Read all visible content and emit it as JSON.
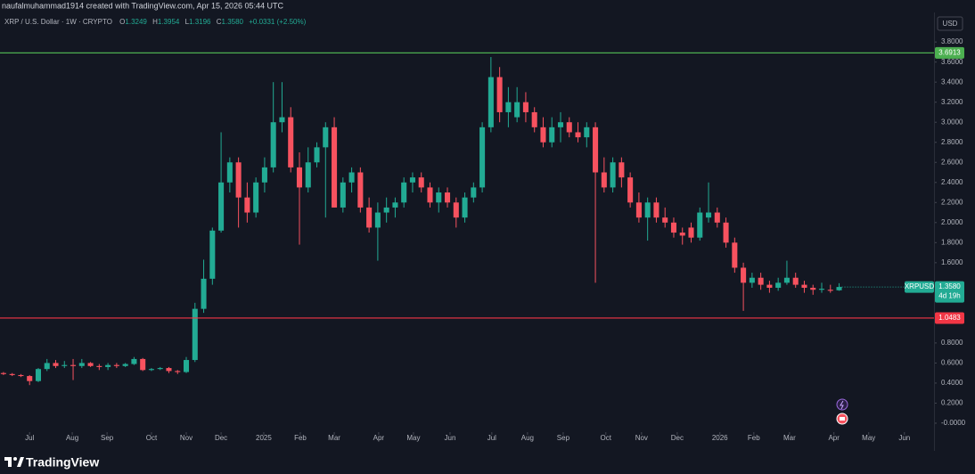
{
  "header": {
    "credit": "naufalmuhammad1914 created with TradingView.com, Apr 15, 2026 05:44 UTC"
  },
  "footer": {
    "brand": "TradingView"
  },
  "chart_data": {
    "type": "candlestick",
    "symbol_title": "XRP / U.S. Dollar · 1W · CRYPTO",
    "ohlc_legend": [
      {
        "key": "O",
        "value": "1.3249"
      },
      {
        "key": "H",
        "value": "1.3954"
      },
      {
        "key": "L",
        "value": "1.3196"
      },
      {
        "key": "C",
        "value": "1.3580"
      }
    ],
    "change": "+0.0331 (+2.50%)",
    "currency": "USD",
    "open": [
      0.5,
      0.49,
      0.48,
      0.47,
      0.42,
      0.54,
      0.6,
      0.57,
      0.58,
      0.57,
      0.6,
      0.57,
      0.56,
      0.58,
      0.57,
      0.59,
      0.64,
      0.53,
      0.54,
      0.55,
      0.52,
      0.51,
      0.63,
      1.14,
      1.44,
      1.92,
      2.4,
      2.6,
      2.25,
      2.1,
      2.4,
      2.55,
      3.0,
      3.05,
      2.55,
      2.35,
      2.6,
      2.75,
      2.95,
      2.15,
      2.4,
      2.5,
      2.15,
      1.95,
      2.1,
      2.15,
      2.2,
      2.4,
      2.45,
      2.35,
      2.2,
      2.3,
      2.2,
      2.05,
      2.25,
      2.35,
      2.95,
      3.45,
      3.1,
      3.05,
      3.2,
      3.1,
      2.95,
      2.8,
      2.95,
      3.0,
      2.9,
      2.85,
      2.95,
      2.5,
      2.35,
      2.6,
      2.45,
      2.2,
      2.05,
      2.2,
      2.05,
      2.0,
      1.9,
      1.95,
      1.85,
      2.05,
      2.1,
      2.0,
      1.8,
      1.55,
      1.4,
      1.45,
      1.38,
      1.35,
      1.4,
      1.45,
      1.38,
      1.35,
      1.33,
      1.33,
      1.3249
    ],
    "high": [
      0.51,
      0.5,
      0.49,
      0.48,
      0.55,
      0.64,
      0.63,
      0.62,
      0.64,
      0.64,
      0.61,
      0.59,
      0.6,
      0.6,
      0.6,
      0.66,
      0.65,
      0.55,
      0.56,
      0.56,
      0.53,
      0.66,
      1.2,
      1.63,
      1.95,
      2.9,
      2.65,
      2.65,
      2.4,
      2.45,
      2.65,
      3.4,
      3.4,
      3.15,
      2.7,
      2.75,
      2.8,
      3.0,
      3.05,
      2.45,
      2.55,
      2.55,
      2.25,
      2.2,
      2.25,
      2.25,
      2.45,
      2.5,
      2.5,
      2.4,
      2.35,
      2.35,
      2.25,
      2.3,
      2.4,
      3.0,
      3.65,
      3.55,
      3.35,
      3.35,
      3.3,
      3.15,
      3.05,
      3.05,
      3.1,
      3.05,
      3.0,
      3.0,
      3.0,
      2.65,
      2.65,
      2.65,
      2.5,
      2.3,
      2.25,
      2.25,
      2.15,
      2.05,
      1.95,
      2.0,
      2.15,
      2.4,
      2.15,
      2.05,
      1.85,
      1.6,
      1.5,
      1.5,
      1.42,
      1.45,
      1.62,
      1.5,
      1.42,
      1.38,
      1.4,
      1.38,
      1.3954
    ],
    "low": [
      0.48,
      0.47,
      0.46,
      0.38,
      0.41,
      0.52,
      0.55,
      0.55,
      0.43,
      0.55,
      0.56,
      0.53,
      0.53,
      0.55,
      0.56,
      0.58,
      0.52,
      0.52,
      0.53,
      0.5,
      0.49,
      0.5,
      0.61,
      1.1,
      1.38,
      1.9,
      2.3,
      1.95,
      2.0,
      2.05,
      2.3,
      2.5,
      2.9,
      2.5,
      1.78,
      2.3,
      2.55,
      2.05,
      2.15,
      2.1,
      2.3,
      2.1,
      1.9,
      1.62,
      2.0,
      2.05,
      2.15,
      2.3,
      2.3,
      2.15,
      2.1,
      2.15,
      1.95,
      2.0,
      2.2,
      2.3,
      2.9,
      3.0,
      2.95,
      3.0,
      3.0,
      2.9,
      2.75,
      2.75,
      2.8,
      2.85,
      2.8,
      2.75,
      1.4,
      2.3,
      2.3,
      2.35,
      2.15,
      2.0,
      1.82,
      2.0,
      1.95,
      1.85,
      1.78,
      1.8,
      1.82,
      2.0,
      1.95,
      1.75,
      1.5,
      1.12,
      1.35,
      1.33,
      1.3,
      1.32,
      1.38,
      1.35,
      1.3,
      1.28,
      1.3,
      1.3,
      1.3196
    ],
    "close": [
      0.49,
      0.48,
      0.47,
      0.42,
      0.54,
      0.6,
      0.57,
      0.58,
      0.57,
      0.6,
      0.57,
      0.56,
      0.58,
      0.57,
      0.59,
      0.64,
      0.53,
      0.54,
      0.55,
      0.52,
      0.51,
      0.63,
      1.14,
      1.44,
      1.92,
      2.4,
      2.6,
      2.25,
      2.1,
      2.4,
      2.55,
      3.0,
      3.05,
      2.55,
      2.35,
      2.6,
      2.75,
      2.95,
      2.15,
      2.4,
      2.5,
      2.15,
      1.95,
      2.1,
      2.15,
      2.2,
      2.4,
      2.45,
      2.35,
      2.2,
      2.3,
      2.2,
      2.05,
      2.25,
      2.35,
      2.95,
      3.45,
      3.1,
      3.2,
      3.2,
      3.1,
      2.95,
      2.8,
      2.95,
      3.0,
      2.9,
      2.85,
      2.95,
      2.5,
      2.35,
      2.6,
      2.45,
      2.2,
      2.05,
      2.2,
      2.05,
      2.0,
      1.9,
      1.87,
      1.85,
      2.1,
      2.1,
      2.0,
      1.8,
      1.55,
      1.4,
      1.45,
      1.38,
      1.35,
      1.4,
      1.45,
      1.38,
      1.35,
      1.33,
      1.34,
      1.32,
      1.358
    ],
    "up_color": "#22ab94",
    "down_color": "#f7525f",
    "xlim": [
      -0.4,
      106.9
    ],
    "xticks": [
      {
        "value": 3,
        "label": "Jul"
      },
      {
        "value": 7.9,
        "label": "Aug"
      },
      {
        "value": 11.9,
        "label": "Sep"
      },
      {
        "value": 17.0,
        "label": "Oct"
      },
      {
        "value": 21.0,
        "label": "Nov"
      },
      {
        "value": 25.0,
        "label": "Dec"
      },
      {
        "value": 29.9,
        "label": "2025"
      },
      {
        "value": 34.1,
        "label": "Feb"
      },
      {
        "value": 38.0,
        "label": "Mar"
      },
      {
        "value": 43.1,
        "label": "Apr"
      },
      {
        "value": 47.1,
        "label": "May"
      },
      {
        "value": 51.3,
        "label": "Jun"
      },
      {
        "value": 56.1,
        "label": "Jul"
      },
      {
        "value": 60.2,
        "label": "Aug"
      },
      {
        "value": 64.3,
        "label": "Sep"
      },
      {
        "value": 69.2,
        "label": "Oct"
      },
      {
        "value": 73.3,
        "label": "Nov"
      },
      {
        "value": 77.4,
        "label": "Dec"
      },
      {
        "value": 82.3,
        "label": "2026"
      },
      {
        "value": 86.2,
        "label": "Feb"
      },
      {
        "value": 90.3,
        "label": "Mar"
      },
      {
        "value": 95.4,
        "label": "Apr"
      },
      {
        "value": 99.4,
        "label": "May"
      },
      {
        "value": 103.5,
        "label": "Jun"
      }
    ],
    "ylim": [
      -0.089,
      3.89
    ],
    "yticks": [
      {
        "value": 3.8,
        "label": "3.8000"
      },
      {
        "value": 3.6,
        "label": "3.6000"
      },
      {
        "value": 3.4,
        "label": "3.4000"
      },
      {
        "value": 3.2,
        "label": "3.2000"
      },
      {
        "value": 3.0,
        "label": "3.0000"
      },
      {
        "value": 2.8,
        "label": "2.8000"
      },
      {
        "value": 2.6,
        "label": "2.6000"
      },
      {
        "value": 2.4,
        "label": "2.4000"
      },
      {
        "value": 2.2,
        "label": "2.2000"
      },
      {
        "value": 2.0,
        "label": "2.0000"
      },
      {
        "value": 1.8,
        "label": "1.8000"
      },
      {
        "value": 1.6,
        "label": "1.6000"
      },
      {
        "value": 0.8,
        "label": "0.8000"
      },
      {
        "value": 0.6,
        "label": "0.6000"
      },
      {
        "value": 0.4,
        "label": "0.4000"
      },
      {
        "value": 0.2,
        "label": "0.2000"
      },
      {
        "value": 0,
        "label": "-0.0000"
      }
    ],
    "hlines": [
      {
        "value": 3.6913,
        "color": "#4caf50"
      },
      {
        "value": 1.0483,
        "color": "#f23645"
      }
    ],
    "last_price": {
      "symbol": "XRPUSD",
      "value": 1.358,
      "label": "1.3580",
      "countdown": "4d 19h"
    }
  }
}
